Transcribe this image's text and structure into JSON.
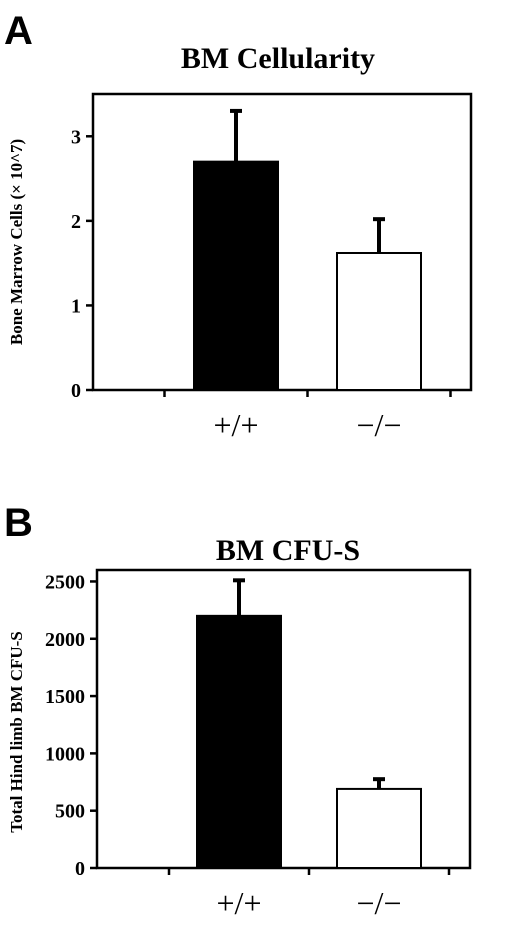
{
  "chart_data": [
    {
      "panel": "A",
      "type": "bar",
      "title": "BM Cellularity",
      "ylabel": "Bone Marrow Cells (× 10^7)",
      "xlabel": "",
      "categories": [
        "+/+",
        "−/−"
      ],
      "values": [
        2.7,
        1.62
      ],
      "errors": [
        0.6,
        0.4
      ],
      "bar_colors": [
        "#000000",
        "#ffffff"
      ],
      "ylim": [
        0,
        3.5
      ],
      "yticks": [
        0,
        1,
        2,
        3
      ],
      "ytick_labels": [
        "0",
        "1",
        "2",
        "3"
      ],
      "grid": false
    },
    {
      "panel": "B",
      "type": "bar",
      "title": "BM CFU-S",
      "ylabel": "Total Hind limb BM CFU-S",
      "xlabel": "",
      "categories": [
        "+/+",
        "−/−"
      ],
      "values": [
        2200,
        690
      ],
      "errors": [
        310,
        85
      ],
      "bar_colors": [
        "#000000",
        "#ffffff"
      ],
      "ylim": [
        0,
        2600
      ],
      "yticks": [
        0,
        500,
        1000,
        1500,
        2000,
        2500
      ],
      "ytick_labels": [
        "0",
        "500",
        "1000",
        "1500",
        "2000",
        "2500"
      ],
      "grid": false
    }
  ]
}
